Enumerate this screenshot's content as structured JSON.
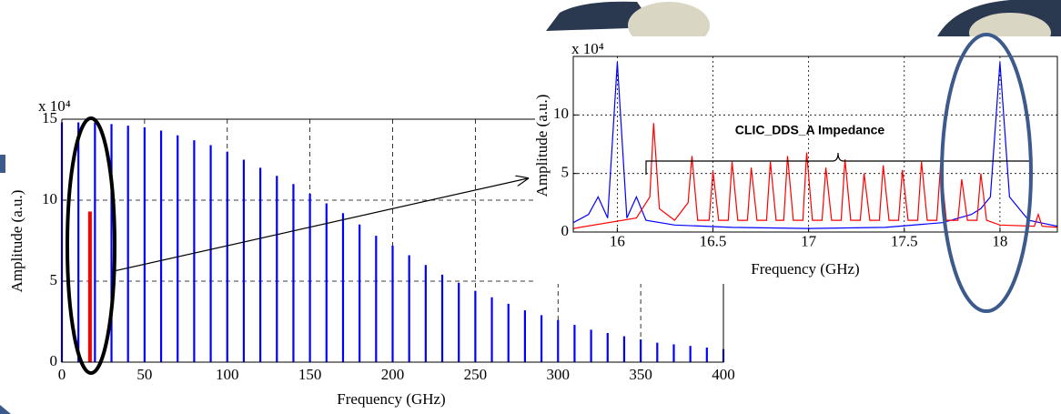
{
  "chart_data": [
    {
      "type": "stem",
      "x_label": "Frequency (GHz)",
      "y_label": "Amplitude (a.u.)",
      "exponent_label": "x 10⁴",
      "xlim": [
        0,
        400
      ],
      "xticks": [
        0,
        50,
        100,
        150,
        200,
        250,
        300,
        350,
        400
      ],
      "ylim": [
        0,
        15
      ],
      "yticks": [
        0,
        5,
        10,
        15
      ],
      "grid": true,
      "series": [
        {
          "color": "#0000ff",
          "x": [
            0,
            10,
            20,
            30,
            40,
            50,
            60,
            70,
            80,
            90,
            100,
            110,
            120,
            130,
            140,
            150,
            160,
            170,
            180,
            190,
            200,
            210,
            220,
            230,
            240,
            250,
            260,
            270,
            280,
            290,
            300,
            310,
            320,
            330,
            340,
            350,
            360,
            370,
            380,
            390,
            400
          ],
          "values": [
            14.8,
            14.8,
            14.8,
            14.7,
            14.6,
            14.5,
            14.3,
            14.0,
            13.7,
            13.4,
            13.0,
            12.5,
            12.0,
            11.5,
            11.0,
            10.4,
            9.8,
            9.2,
            8.5,
            7.8,
            7.2,
            6.6,
            6.0,
            5.4,
            4.9,
            4.4,
            4.0,
            3.6,
            3.2,
            2.9,
            2.6,
            2.3,
            2.0,
            1.8,
            1.6,
            1.4,
            1.2,
            1.1,
            1.0,
            0.9,
            0.8
          ]
        },
        {
          "color": "#ff0000",
          "x": [
            17
          ],
          "values": [
            9.3
          ]
        }
      ]
    },
    {
      "type": "line",
      "x_label": "Frequency (GHz)",
      "y_label": "Amplitude (a.u.)",
      "exponent_label": "x 10⁴",
      "annotation": "CLIC_DDS_A Impedance",
      "xlim": [
        15.77,
        18.3
      ],
      "xticks": [
        16,
        16.5,
        17,
        17.5,
        18
      ],
      "ylim": [
        0,
        15
      ],
      "yticks": [
        0,
        5,
        10
      ],
      "grid": true,
      "series": [
        {
          "color": "#0000ff",
          "x": [
            15.77,
            15.85,
            15.9,
            15.95,
            16.0,
            16.05,
            16.1,
            16.15,
            16.3,
            16.6,
            17.0,
            17.4,
            17.7,
            17.85,
            17.9,
            17.95,
            18.0,
            18.05,
            18.1,
            18.15,
            18.3
          ],
          "values": [
            0.8,
            1.5,
            3,
            1.2,
            14.5,
            1.2,
            3,
            1,
            0.6,
            0.4,
            0.3,
            0.4,
            0.8,
            1.5,
            2,
            3,
            14.5,
            3,
            2,
            1,
            0.5
          ]
        },
        {
          "color": "#ff0000",
          "x": [
            15.77,
            16.1,
            16.17,
            16.19,
            16.22,
            16.3,
            16.37,
            16.39,
            16.42,
            16.48,
            16.5,
            16.53,
            16.58,
            16.6,
            16.63,
            16.68,
            16.7,
            16.73,
            16.78,
            16.8,
            16.83,
            16.87,
            16.89,
            16.92,
            16.97,
            16.99,
            17.02,
            17.07,
            17.09,
            17.12,
            17.17,
            17.19,
            17.22,
            17.27,
            17.29,
            17.32,
            17.37,
            17.39,
            17.42,
            17.47,
            17.49,
            17.52,
            17.57,
            17.59,
            17.62,
            17.67,
            17.69,
            17.72,
            17.78,
            17.8,
            17.83,
            17.88,
            17.9,
            17.93,
            18.0,
            18.18,
            18.2,
            18.22,
            18.3
          ],
          "values": [
            0.3,
            1.2,
            3,
            9.3,
            2,
            1,
            2.5,
            6.5,
            1,
            1,
            5.2,
            1,
            1,
            6,
            1,
            1,
            5.5,
            1,
            1,
            6,
            1,
            1,
            6.5,
            1,
            1,
            6.8,
            1,
            1,
            5.5,
            1,
            1,
            6.2,
            1,
            1,
            5,
            1,
            1,
            5.7,
            1,
            1,
            5.3,
            1,
            1,
            6,
            1,
            1,
            5.8,
            1,
            1,
            4.5,
            1,
            1,
            5,
            1,
            0.6,
            0.5,
            1.5,
            0.5,
            0.4
          ]
        }
      ]
    }
  ]
}
